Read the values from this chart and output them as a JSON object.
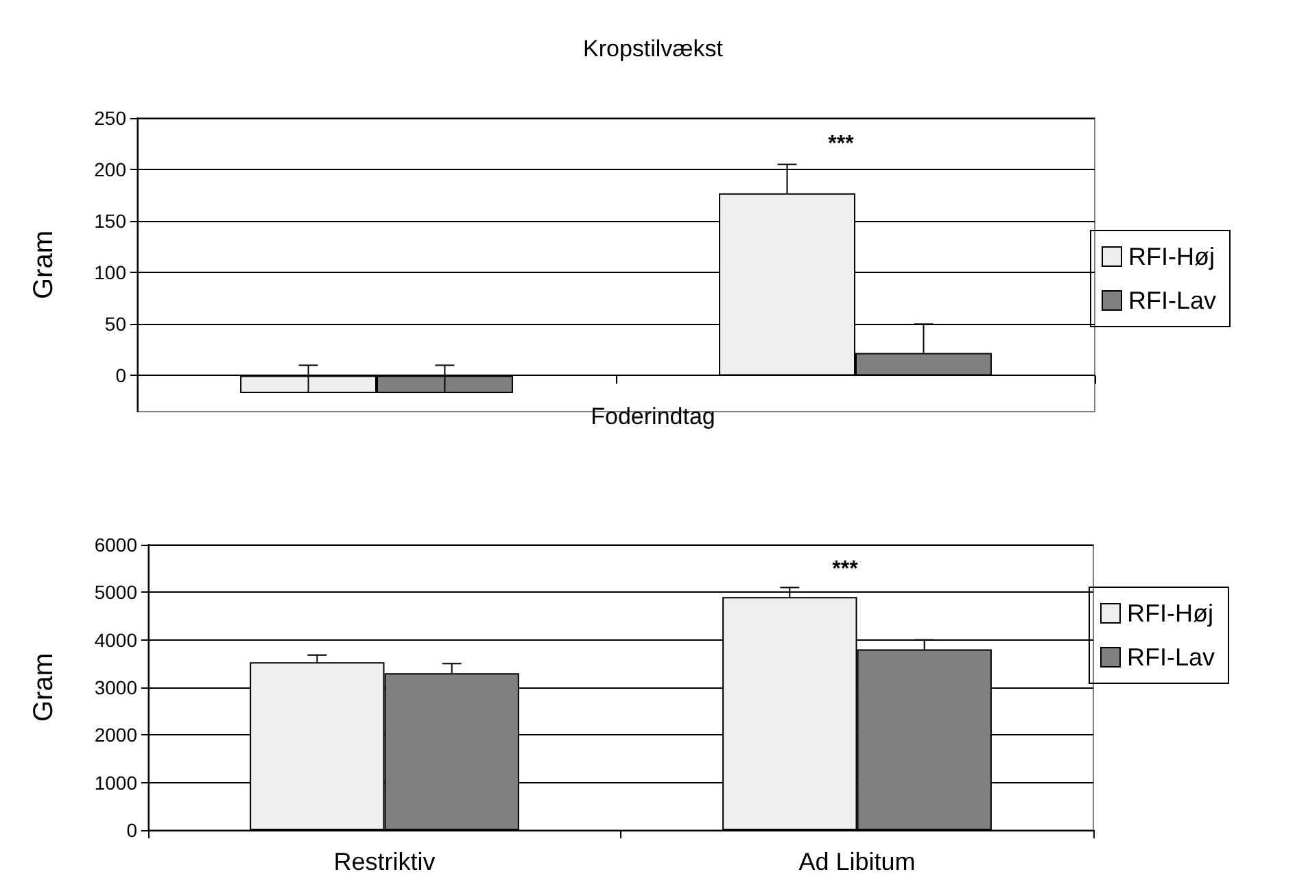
{
  "chart_data": [
    {
      "type": "bar",
      "title": "Kropstilvækst",
      "ylabel": "Gram",
      "categories": [
        null,
        null
      ],
      "tick_labels": "y",
      "ylim": [
        -35,
        250
      ],
      "yticks": [
        0,
        50,
        100,
        150,
        200,
        250
      ],
      "grid": "y",
      "legend": "right",
      "series": [
        {
          "name": "RFI-Høj",
          "color": "#eeeeee",
          "values": [
            -17,
            177
          ],
          "errors": [
            [
              -17,
              10
            ],
            [
              177,
              205
            ]
          ]
        },
        {
          "name": "RFI-Lav",
          "color": "#808080",
          "values": [
            -17,
            22
          ],
          "errors": [
            [
              -17,
              10
            ],
            [
              22,
              50
            ]
          ]
        }
      ],
      "annotations": [
        "***"
      ]
    },
    {
      "type": "bar",
      "title": "Foderindtag",
      "ylabel": "Gram",
      "categories": [
        "Restriktiv",
        "Ad Libitum"
      ],
      "ylim": [
        0,
        6000
      ],
      "yticks": [
        0,
        1000,
        2000,
        3000,
        4000,
        5000,
        6000
      ],
      "grid": "y",
      "legend": "right",
      "series": [
        {
          "name": "RFI-Høj",
          "color": "#eeeeee",
          "values": [
            3530,
            4900
          ],
          "errors": [
            [
              3530,
              3680
            ],
            [
              4900,
              5100
            ]
          ]
        },
        {
          "name": "RFI-Lav",
          "color": "#808080",
          "values": [
            3300,
            3800
          ],
          "errors": [
            [
              3300,
              3500
            ],
            [
              3800,
              4000
            ]
          ]
        }
      ],
      "annotations": [
        "***"
      ]
    }
  ]
}
